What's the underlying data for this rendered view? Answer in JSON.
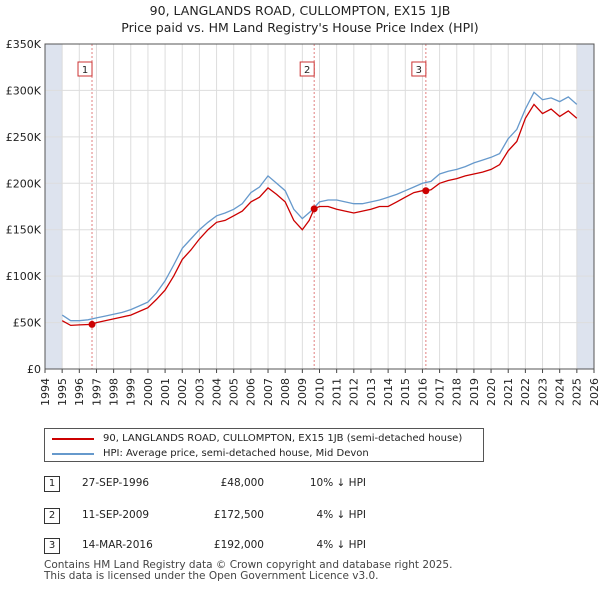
{
  "chart_data": {
    "type": "line",
    "title": "90, LANGLANDS ROAD, CULLOMPTON, EX15 1JB",
    "subtitle": "Price paid vs. HM Land Registry's House Price Index (HPI)",
    "xlabel": "",
    "ylabel": "",
    "xlim": [
      1994,
      2026
    ],
    "ylim": [
      0,
      350000
    ],
    "y_ticks": [
      {
        "value": 0,
        "label": "£0"
      },
      {
        "value": 50000,
        "label": "£50K"
      },
      {
        "value": 100000,
        "label": "£100K"
      },
      {
        "value": 150000,
        "label": "£150K"
      },
      {
        "value": 200000,
        "label": "£200K"
      },
      {
        "value": 250000,
        "label": "£250K"
      },
      {
        "value": 300000,
        "label": "£300K"
      },
      {
        "value": 350000,
        "label": "£350K"
      }
    ],
    "x_ticks": [
      "1994",
      "1995",
      "1996",
      "1997",
      "1998",
      "1999",
      "2000",
      "2001",
      "2002",
      "2003",
      "2004",
      "2005",
      "2006",
      "2007",
      "2008",
      "2009",
      "2010",
      "2011",
      "2012",
      "2013",
      "2014",
      "2015",
      "2016",
      "2017",
      "2018",
      "2019",
      "2020",
      "2021",
      "2022",
      "2023",
      "2024",
      "2025",
      "2026"
    ],
    "grid": true,
    "data_range_shaded_before": 1995.0,
    "data_range_shaded_after": 2025.0,
    "series": [
      {
        "name": "90, LANGLANDS ROAD, CULLOMPTON, EX15 1JB (semi-detached house)",
        "color": "#cc0000",
        "x": [
          1995.0,
          1995.5,
          1996.0,
          1996.74,
          1997.0,
          1997.5,
          1998.0,
          1998.5,
          1999.0,
          1999.5,
          2000.0,
          2000.5,
          2001.0,
          2001.5,
          2002.0,
          2002.5,
          2003.0,
          2003.5,
          2004.0,
          2004.5,
          2005.0,
          2005.5,
          2006.0,
          2006.5,
          2007.0,
          2007.5,
          2008.0,
          2008.5,
          2009.0,
          2009.4,
          2009.69,
          2010.0,
          2010.5,
          2011.0,
          2011.5,
          2012.0,
          2012.5,
          2013.0,
          2013.5,
          2014.0,
          2014.5,
          2015.0,
          2015.5,
          2016.0,
          2016.2,
          2016.5,
          2017.0,
          2017.5,
          2018.0,
          2018.5,
          2019.0,
          2019.5,
          2020.0,
          2020.5,
          2021.0,
          2021.5,
          2022.0,
          2022.5,
          2023.0,
          2023.5,
          2024.0,
          2024.5,
          2025.0
        ],
        "values": [
          52000,
          47000,
          47500,
          48000,
          50000,
          52000,
          54000,
          56000,
          58000,
          62000,
          66000,
          75000,
          85000,
          100000,
          118000,
          128000,
          140000,
          150000,
          158000,
          160000,
          165000,
          170000,
          180000,
          185000,
          195000,
          188000,
          180000,
          160000,
          150000,
          160000,
          172500,
          175000,
          175000,
          172000,
          170000,
          168000,
          170000,
          172000,
          175000,
          175000,
          180000,
          185000,
          190000,
          192000,
          192000,
          193000,
          200000,
          203000,
          205000,
          208000,
          210000,
          212000,
          215000,
          220000,
          235000,
          245000,
          270000,
          285000,
          275000,
          280000,
          272000,
          278000,
          270000
        ]
      },
      {
        "name": "HPI: Average price, semi-detached house, Mid Devon",
        "color": "#6699cc",
        "x": [
          1995.0,
          1995.5,
          1996.0,
          1996.5,
          1997.0,
          1997.5,
          1998.0,
          1998.5,
          1999.0,
          1999.5,
          2000.0,
          2000.5,
          2001.0,
          2001.5,
          2002.0,
          2002.5,
          2003.0,
          2003.5,
          2004.0,
          2004.5,
          2005.0,
          2005.5,
          2006.0,
          2006.5,
          2007.0,
          2007.5,
          2008.0,
          2008.5,
          2009.0,
          2009.5,
          2010.0,
          2010.5,
          2011.0,
          2011.5,
          2012.0,
          2012.5,
          2013.0,
          2013.5,
          2014.0,
          2014.5,
          2015.0,
          2015.5,
          2016.0,
          2016.5,
          2017.0,
          2017.5,
          2018.0,
          2018.5,
          2019.0,
          2019.5,
          2020.0,
          2020.5,
          2021.0,
          2021.5,
          2022.0,
          2022.5,
          2023.0,
          2023.5,
          2024.0,
          2024.5,
          2025.0
        ],
        "values": [
          58000,
          52000,
          52000,
          53000,
          55000,
          57000,
          59000,
          61000,
          64000,
          68000,
          72000,
          82000,
          95000,
          112000,
          130000,
          140000,
          150000,
          158000,
          165000,
          168000,
          172000,
          178000,
          190000,
          196000,
          208000,
          200000,
          192000,
          172000,
          162000,
          170000,
          180000,
          182000,
          182000,
          180000,
          178000,
          178000,
          180000,
          182000,
          185000,
          188000,
          192000,
          196000,
          200000,
          202000,
          210000,
          213000,
          215000,
          218000,
          222000,
          225000,
          228000,
          232000,
          248000,
          258000,
          280000,
          298000,
          290000,
          292000,
          288000,
          293000,
          285000
        ]
      }
    ],
    "sale_markers": [
      {
        "label": "1",
        "x": 1996.74,
        "value": 48000
      },
      {
        "label": "2",
        "x": 2009.69,
        "value": 172500
      },
      {
        "label": "3",
        "x": 2016.2,
        "value": 192000
      }
    ]
  },
  "legend": {
    "red_label": "90, LANGLANDS ROAD, CULLOMPTON, EX15 1JB (semi-detached house)",
    "blue_label": "HPI: Average price, semi-detached house, Mid Devon"
  },
  "sales": [
    {
      "num": "1",
      "date": "27-SEP-1996",
      "price": "£48,000",
      "hpi": "10% ↓ HPI"
    },
    {
      "num": "2",
      "date": "11-SEP-2009",
      "price": "£172,500",
      "hpi": "4% ↓ HPI"
    },
    {
      "num": "3",
      "date": "14-MAR-2016",
      "price": "£192,000",
      "hpi": "4% ↓ HPI"
    }
  ],
  "footer": {
    "line1": "Contains HM Land Registry data © Crown copyright and database right 2025.",
    "line2": "This data is licensed under the Open Government Licence v3.0."
  }
}
